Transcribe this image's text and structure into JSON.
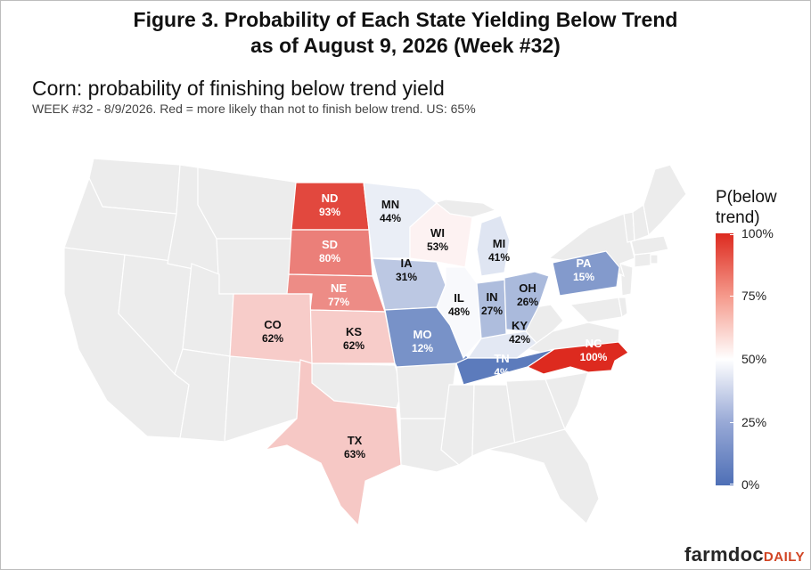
{
  "figure": {
    "title_line1": "Figure 3. Probability of Each State Yielding Below Trend",
    "title_line2": "as of August 9, 2026 (Week #32)"
  },
  "map": {
    "title": "Corn: probability of finishing below trend yield",
    "subtitle": "WEEK #32 - 8/9/2026. Red = more likely than not to finish below trend. US: 65%"
  },
  "legend": {
    "title_line1": "P(below",
    "title_line2": "trend)",
    "ticks": [
      "100%",
      "75%",
      "50%",
      "25%",
      "0%"
    ],
    "colors": {
      "high": "#dd2a1f",
      "mid": "#ffffff",
      "low": "#4e6fb6",
      "no_data": "#ececec"
    }
  },
  "branding": {
    "logo_main": "farmdoc",
    "logo_sub": "DAILY",
    "logo_sub_color": "#d14423"
  },
  "chart_data": {
    "type": "choropleth",
    "states": [
      {
        "abbr": "ND",
        "label": "93%",
        "value": 0.93
      },
      {
        "abbr": "SD",
        "label": "80%",
        "value": 0.8
      },
      {
        "abbr": "NE",
        "label": "77%",
        "value": 0.77
      },
      {
        "abbr": "KS",
        "label": "62%",
        "value": 0.62
      },
      {
        "abbr": "CO",
        "label": "62%",
        "value": 0.62
      },
      {
        "abbr": "TX",
        "label": "63%",
        "value": 0.63
      },
      {
        "abbr": "MN",
        "label": "44%",
        "value": 0.44
      },
      {
        "abbr": "IA",
        "label": "31%",
        "value": 0.31
      },
      {
        "abbr": "MO",
        "label": "12%",
        "value": 0.12
      },
      {
        "abbr": "WI",
        "label": "53%",
        "value": 0.53
      },
      {
        "abbr": "IL",
        "label": "48%",
        "value": 0.48
      },
      {
        "abbr": "MI",
        "label": "41%",
        "value": 0.41
      },
      {
        "abbr": "IN",
        "label": "27%",
        "value": 0.27
      },
      {
        "abbr": "OH",
        "label": "26%",
        "value": 0.26
      },
      {
        "abbr": "KY",
        "label": "42%",
        "value": 0.42
      },
      {
        "abbr": "TN",
        "label": "4%",
        "value": 0.04
      },
      {
        "abbr": "PA",
        "label": "15%",
        "value": 0.15
      },
      {
        "abbr": "NC",
        "label": "100%",
        "value": 1.0
      }
    ]
  }
}
